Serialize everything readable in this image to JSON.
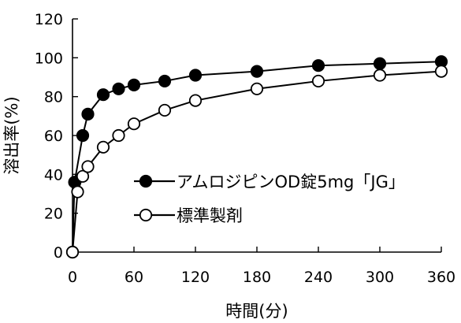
{
  "chart_data": {
    "type": "line",
    "xlabel": "時間(分)",
    "ylabel": "溶出率(%)",
    "xlim": [
      0,
      360
    ],
    "ylim": [
      0,
      120
    ],
    "xticks": [
      0,
      60,
      120,
      180,
      240,
      300,
      360
    ],
    "yticks": [
      0,
      20,
      40,
      60,
      80,
      100,
      120
    ],
    "grid": false,
    "legend_position": "center-right",
    "series": [
      {
        "name": "アムロジピンOD錠5mg「JG」",
        "marker": "filled-circle",
        "color": "#000000",
        "x": [
          0,
          2,
          10,
          15,
          30,
          45,
          60,
          90,
          120,
          180,
          240,
          300,
          360
        ],
        "y": [
          0,
          36,
          60,
          71,
          81,
          84,
          86,
          88,
          91,
          93,
          96,
          97,
          98
        ]
      },
      {
        "name": "標準製剤",
        "marker": "open-circle",
        "color": "#000000",
        "x": [
          0,
          5,
          10,
          15,
          30,
          45,
          60,
          90,
          120,
          180,
          240,
          300,
          360
        ],
        "y": [
          0,
          31,
          39,
          44,
          54,
          60,
          66,
          73,
          78,
          84,
          88,
          91,
          93
        ]
      }
    ]
  }
}
